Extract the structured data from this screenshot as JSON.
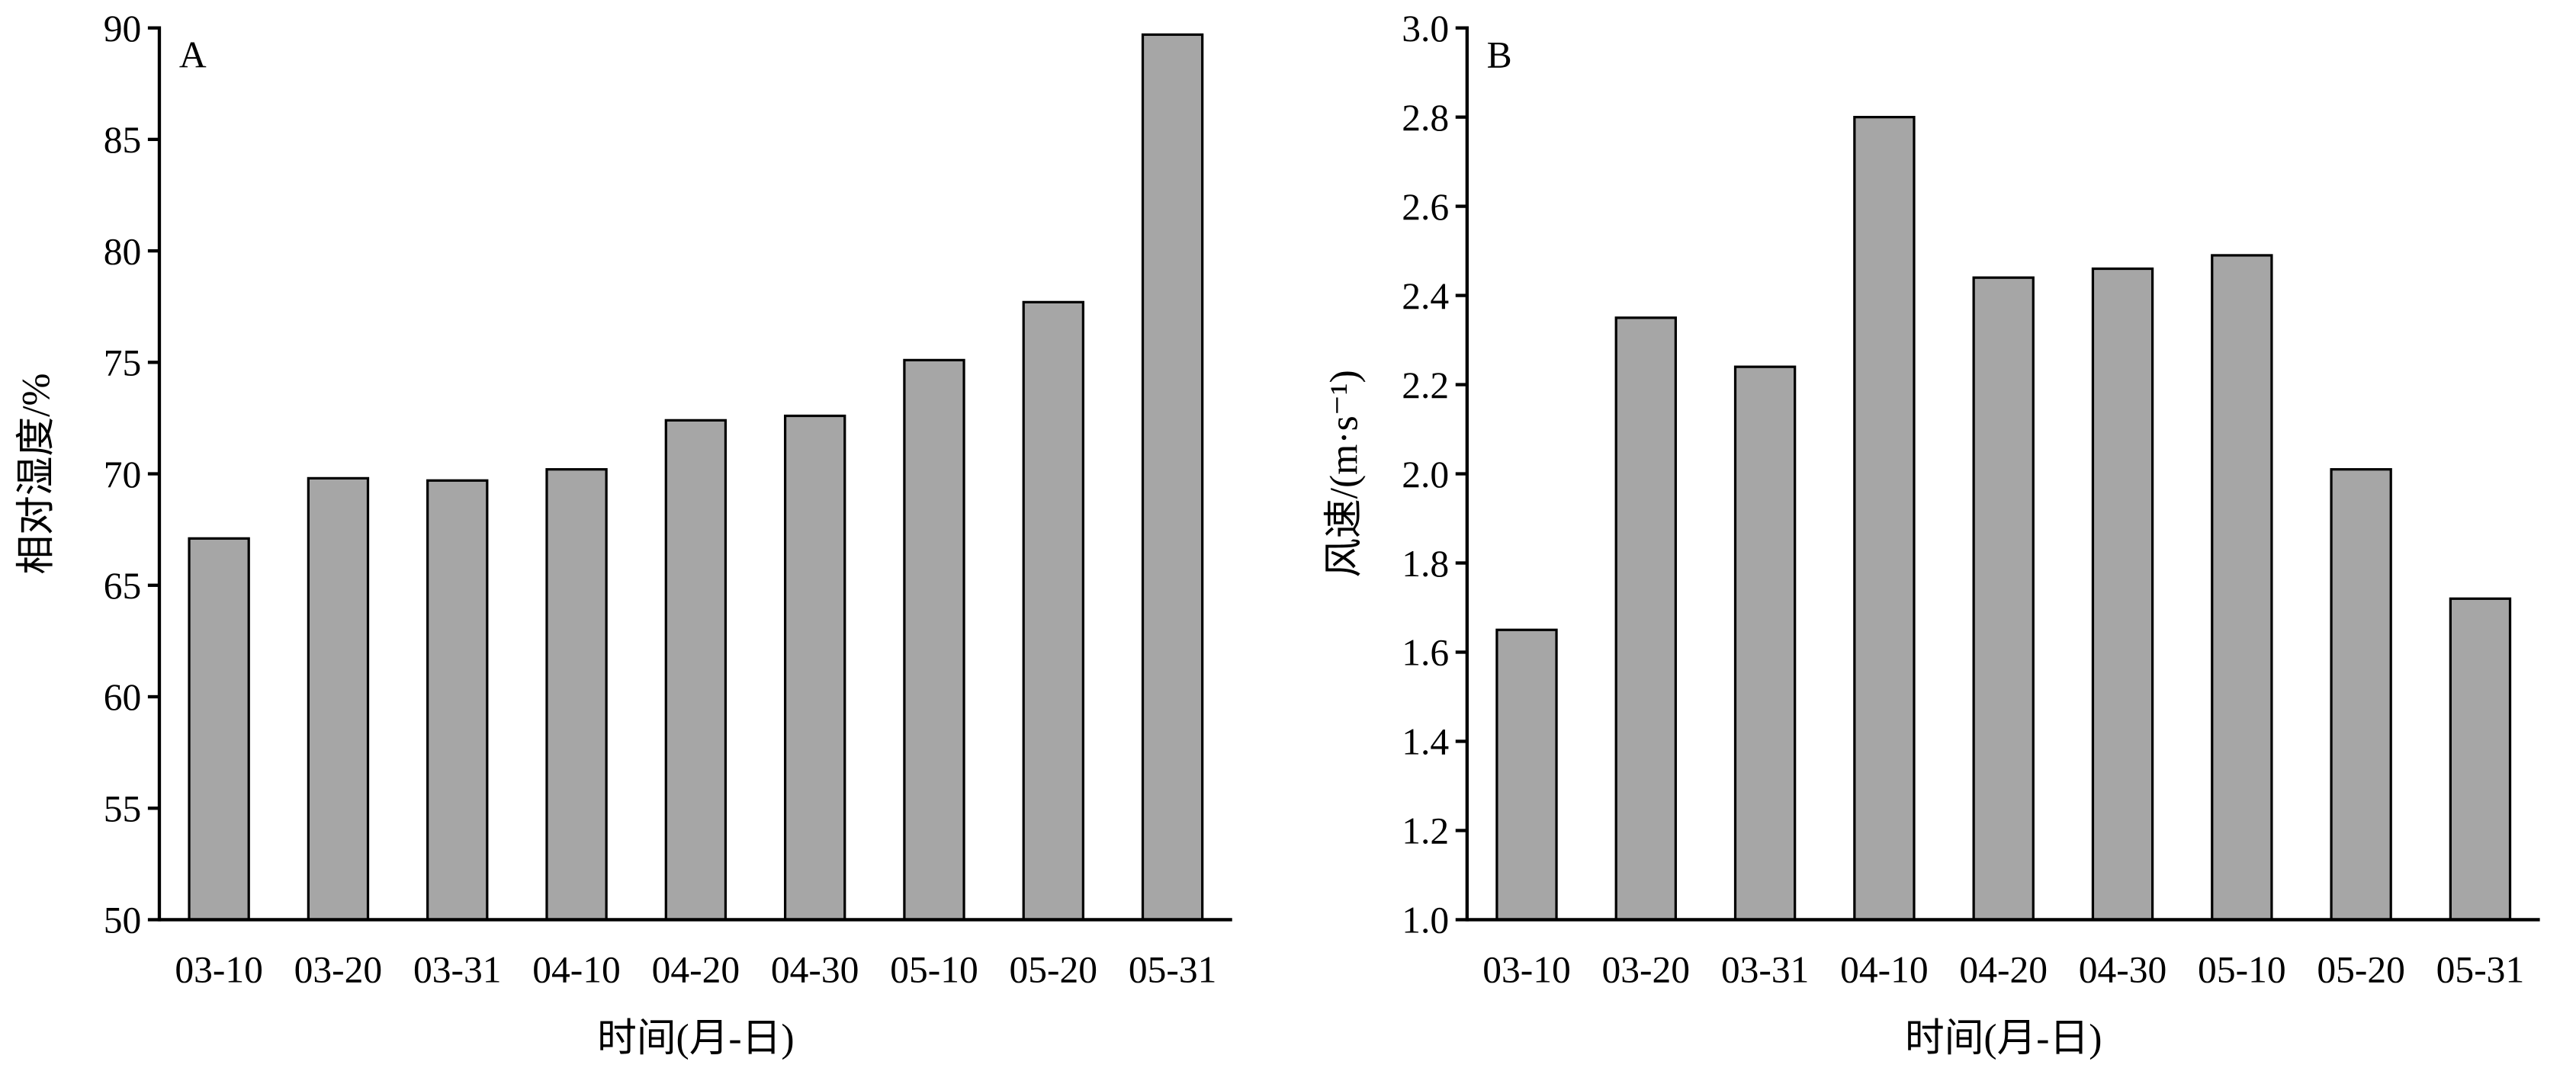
{
  "chart_data": [
    {
      "type": "bar",
      "panel_label": "A",
      "x_label": "时间(月-日)",
      "y_label": "相对湿度/%",
      "categories": [
        "03-10",
        "03-20",
        "03-31",
        "04-10",
        "04-20",
        "04-30",
        "05-10",
        "05-20",
        "05-31"
      ],
      "values": [
        67.1,
        69.8,
        69.7,
        70.2,
        72.4,
        72.6,
        75.1,
        77.7,
        89.7
      ],
      "color": "#a6a6a6",
      "ylim": [
        50,
        90
      ],
      "yticks": [
        50,
        55,
        60,
        65,
        70,
        75,
        80,
        85,
        90
      ],
      "grid": false
    },
    {
      "type": "bar",
      "panel_label": "B",
      "x_label": "时间(月-日)",
      "y_label": "风速/(m·s⁻¹)",
      "categories": [
        "03-10",
        "03-20",
        "03-31",
        "04-10",
        "04-20",
        "04-30",
        "05-10",
        "05-20",
        "05-31"
      ],
      "values": [
        1.65,
        2.35,
        2.24,
        2.8,
        2.44,
        2.46,
        2.49,
        2.01,
        1.72
      ],
      "color": "#a6a6a6",
      "ylim": [
        1.0,
        3.0
      ],
      "yticks": [
        {
          "value": 1.0,
          "label": "1.0"
        },
        1.2,
        1.4,
        1.6,
        1.8,
        {
          "value": 2.0,
          "label": "2.0"
        },
        2.2,
        2.4,
        2.6,
        2.8,
        {
          "value": 3.0,
          "label": "3.0"
        }
      ],
      "grid": false
    }
  ]
}
